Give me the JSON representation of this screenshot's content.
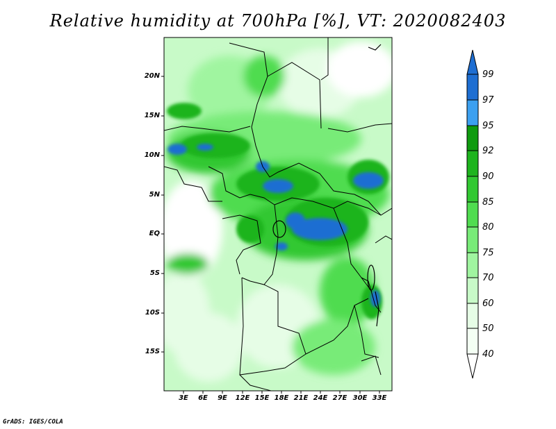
{
  "title": "Relative humidity at 700hPa [%], VT: 2020082403",
  "credit": "GrADS: IGES/COLA",
  "map": {
    "lat_labels": [
      "20N",
      "15N",
      "10N",
      "5N",
      "EQ",
      "5S",
      "10S",
      "15S"
    ],
    "lon_labels": [
      "3E",
      "6E",
      "9E",
      "12E",
      "15E",
      "18E",
      "21E",
      "24E",
      "27E",
      "30E",
      "33E"
    ]
  },
  "colorbar": {
    "levels": [
      "99",
      "97",
      "95",
      "92",
      "90",
      "85",
      "80",
      "75",
      "70",
      "60",
      "50",
      "40"
    ],
    "colors": [
      "#1e6ed2",
      "#3ca0f0",
      "#0f9b0f",
      "#1eb41e",
      "#32c832",
      "#50dc50",
      "#78eb78",
      "#a0f5a0",
      "#c8fac8",
      "#e6fde6",
      "#ffffff"
    ]
  }
}
